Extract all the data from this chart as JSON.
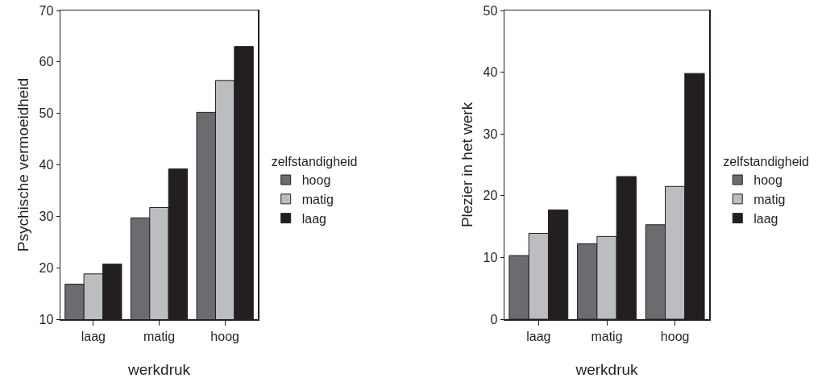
{
  "chart_data": [
    {
      "type": "bar",
      "categories": [
        "laag",
        "matig",
        "hoog"
      ],
      "xlabel": "werkdruk",
      "ylabel": "Psychische vermoeidheid",
      "legend_title": "zelfstandigheid",
      "legend": "right",
      "grid": false,
      "ylim": [
        10,
        70
      ],
      "yticks": [
        10,
        20,
        30,
        40,
        50,
        60,
        70
      ],
      "series": [
        {
          "name": "hoog",
          "color": "#6b6c70",
          "values": [
            16.8,
            29.7,
            50.2
          ]
        },
        {
          "name": "matig",
          "color": "#bcbdc1",
          "values": [
            18.8,
            31.7,
            56.4
          ]
        },
        {
          "name": "laag",
          "color": "#231f20",
          "values": [
            20.7,
            39.2,
            63.0
          ]
        }
      ]
    },
    {
      "type": "bar",
      "categories": [
        "laag",
        "matig",
        "hoog"
      ],
      "xlabel": "werkdruk",
      "ylabel": "Plezier in het werk",
      "legend_title": "zelfstandigheid",
      "legend": "right",
      "grid": false,
      "ylim": [
        0,
        50
      ],
      "yticks": [
        0,
        10,
        20,
        30,
        40,
        50
      ],
      "series": [
        {
          "name": "hoog",
          "color": "#6b6c70",
          "values": [
            10.3,
            12.2,
            15.3
          ]
        },
        {
          "name": "matig",
          "color": "#bcbdc1",
          "values": [
            13.9,
            13.4,
            21.5
          ]
        },
        {
          "name": "laag",
          "color": "#231f20",
          "values": [
            17.7,
            23.1,
            39.8
          ]
        }
      ]
    }
  ]
}
